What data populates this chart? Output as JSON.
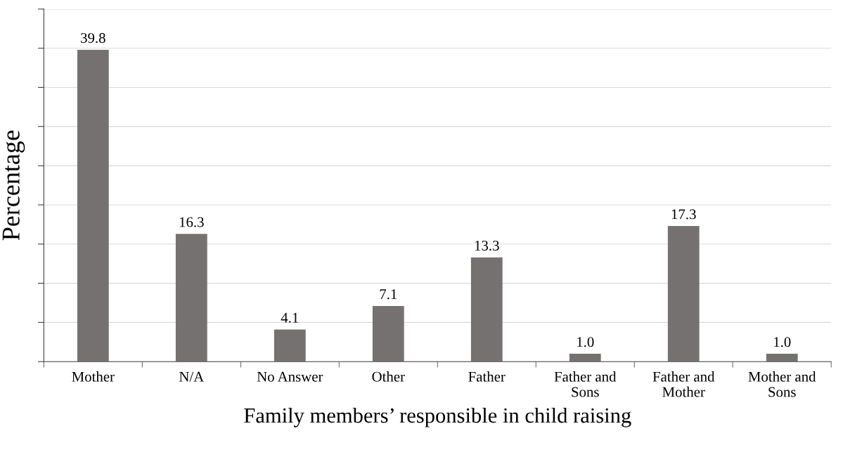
{
  "chart_data": {
    "type": "bar",
    "xlabel": "Family members’ responsible in child raising",
    "ylabel": "Percentage",
    "categories": [
      "Mother",
      "N/A",
      "No Answer",
      "Other",
      "Father",
      "Father and\nSons",
      "Father and\nMother",
      "Mother and\nSons"
    ],
    "values": [
      39.8,
      16.3,
      4.1,
      7.1,
      13.3,
      1.0,
      17.3,
      1.0
    ],
    "color": "#767171",
    "ylim": [
      0,
      45
    ],
    "yticks": [
      {
        "value": 0,
        "label": null
      },
      {
        "value": 5,
        "label": null
      },
      {
        "value": 10,
        "label": null
      },
      {
        "value": 15,
        "label": null
      },
      {
        "value": 20,
        "label": null
      },
      {
        "value": 25,
        "label": null
      },
      {
        "value": 30,
        "label": null
      },
      {
        "value": 35,
        "label": null
      },
      {
        "value": 40,
        "label": null
      },
      {
        "value": 45,
        "label": null
      }
    ],
    "tick_labels": "x",
    "grid": "y",
    "value_labels": [
      "39.8",
      "16.3",
      "4.1",
      "7.1",
      "13.3",
      "1.0",
      "17.3",
      "1.0"
    ]
  }
}
